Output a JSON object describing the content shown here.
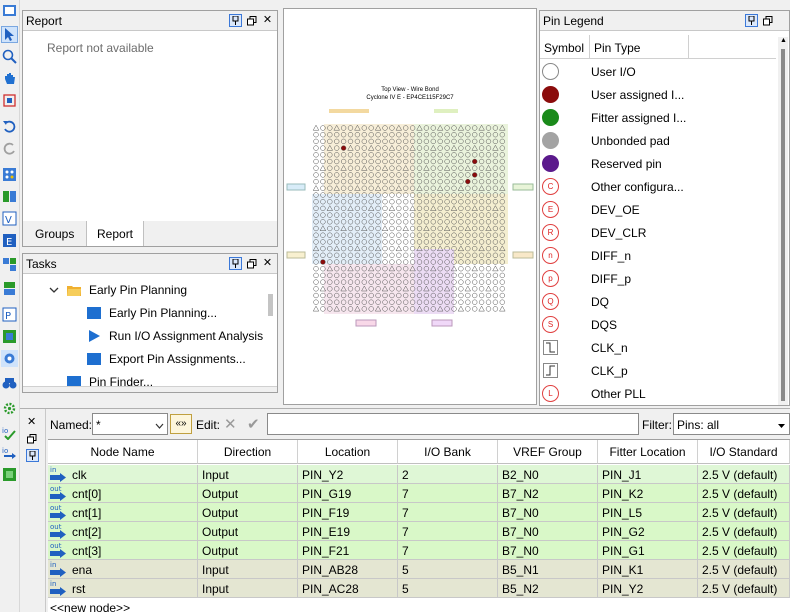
{
  "report": {
    "title": "Report",
    "empty_text": "Report not available",
    "tabs": [
      "Groups",
      "Report"
    ]
  },
  "tasks": {
    "title": "Tasks",
    "items": [
      {
        "label": "Early Pin Planning",
        "icon": "folder-icon"
      },
      {
        "label": "Early Pin Planning...",
        "icon": "task-blue-icon"
      },
      {
        "label": "Run I/O Assignment Analysis",
        "icon": "play-icon"
      },
      {
        "label": "Export Pin Assignments...",
        "icon": "task-blue-icon"
      },
      {
        "label": "Pin Finder...",
        "icon": "task-blue-icon"
      }
    ]
  },
  "chip": {
    "title_line1": "Top View - Wire Bond",
    "title_line2": "Cyclone IV E - EP4CE115F29C7"
  },
  "legend": {
    "title": "Pin Legend",
    "col_symbol": "Symbol",
    "col_type": "Pin Type",
    "items": [
      {
        "label": "User I/O",
        "color": "#ffffff",
        "letter": ""
      },
      {
        "label": "User assigned I...",
        "color": "#8b0c0c",
        "letter": ""
      },
      {
        "label": "Fitter assigned I...",
        "color": "#1a8a1a",
        "letter": ""
      },
      {
        "label": "Unbonded pad",
        "color": "#a3a3a3",
        "letter": ""
      },
      {
        "label": "Reserved pin",
        "color": "#5b1a8c",
        "letter": ""
      },
      {
        "label": "Other configura...",
        "color": "",
        "letter": "C"
      },
      {
        "label": "DEV_OE",
        "color": "",
        "letter": "E"
      },
      {
        "label": "DEV_CLR",
        "color": "",
        "letter": "R"
      },
      {
        "label": "DIFF_n",
        "color": "",
        "letter": "n"
      },
      {
        "label": "DIFF_p",
        "color": "",
        "letter": "p"
      },
      {
        "label": "DQ",
        "color": "",
        "letter": "Q"
      },
      {
        "label": "DQS",
        "color": "",
        "letter": "S"
      },
      {
        "label": "CLK_n",
        "color": "",
        "letter": "clk-n"
      },
      {
        "label": "CLK_p",
        "color": "",
        "letter": "clk-p"
      },
      {
        "label": "Other PLL",
        "color": "",
        "letter": "L"
      }
    ]
  },
  "editor": {
    "named_label": "Named:",
    "named_value": "*",
    "edit_label": "Edit:",
    "filter_label": "Filter:",
    "filter_value": "Pins: all",
    "columns": [
      "Node Name",
      "Direction",
      "Location",
      "I/O Bank",
      "VREF Group",
      "Fitter Location",
      "I/O Standard"
    ],
    "rows": [
      {
        "dir_tag": "in",
        "name": "clk",
        "direction": "Input",
        "location": "PIN_Y2",
        "bank": "2",
        "vref": "B2_N0",
        "fitter": "PIN_J1",
        "std": "2.5 V (default)"
      },
      {
        "dir_tag": "out",
        "name": "cnt[0]",
        "direction": "Output",
        "location": "PIN_G19",
        "bank": "7",
        "vref": "B7_N2",
        "fitter": "PIN_K2",
        "std": "2.5 V (default)"
      },
      {
        "dir_tag": "out",
        "name": "cnt[1]",
        "direction": "Output",
        "location": "PIN_F19",
        "bank": "7",
        "vref": "B7_N0",
        "fitter": "PIN_L5",
        "std": "2.5 V (default)"
      },
      {
        "dir_tag": "out",
        "name": "cnt[2]",
        "direction": "Output",
        "location": "PIN_E19",
        "bank": "7",
        "vref": "B7_N0",
        "fitter": "PIN_G2",
        "std": "2.5 V (default)"
      },
      {
        "dir_tag": "out",
        "name": "cnt[3]",
        "direction": "Output",
        "location": "PIN_F21",
        "bank": "7",
        "vref": "B7_N0",
        "fitter": "PIN_G1",
        "std": "2.5 V (default)"
      },
      {
        "dir_tag": "in",
        "name": "ena",
        "direction": "Input",
        "location": "PIN_AB28",
        "bank": "5",
        "vref": "B5_N1",
        "fitter": "PIN_K1",
        "std": "2.5 V (default)"
      },
      {
        "dir_tag": "in",
        "name": "rst",
        "direction": "Input",
        "location": "PIN_AC28",
        "bank": "5",
        "vref": "B5_N2",
        "fitter": "PIN_Y2",
        "std": "2.5 V (default)"
      }
    ],
    "new_node": "<<new node>>"
  }
}
